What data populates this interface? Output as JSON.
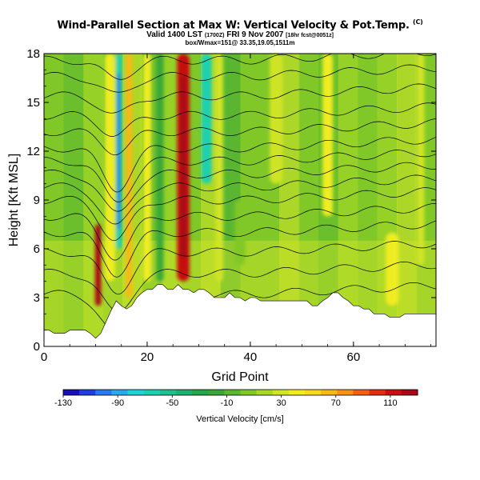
{
  "header": {
    "title": "Wind-Parallel Section at Max W: Vertical Velocity & Pot.Temp.",
    "title_tag": "(C)",
    "valid_main": "Valid 1400 LST",
    "valid_utc": "(1700Z)",
    "valid_date": "FRI 9 Nov 2007",
    "valid_fcst": "[18hr fcst@0051z]",
    "location": "box/Wmax=151@ 33.35,19.05,1511m"
  },
  "chart_data": {
    "type": "heatmap",
    "title": "Wind-Parallel Section at Max W: Vertical Velocity & Pot.Temp.",
    "xlabel": "Grid Point",
    "ylabel": "Height [Kft MSL]",
    "xlim": [
      0,
      76
    ],
    "ylim": [
      0,
      18
    ],
    "x_ticks": [
      0,
      20,
      40,
      60
    ],
    "y_ticks": [
      0,
      3,
      6,
      9,
      12,
      15,
      18
    ],
    "colorbar": {
      "label": "Vertical Velocity [cm/s]",
      "min": -130,
      "max": 130,
      "tick_values": [
        -130,
        -90,
        -50,
        -10,
        30,
        70,
        110
      ],
      "colors": [
        "#1a0fb4",
        "#1f3fe0",
        "#2a78f0",
        "#2aa8f0",
        "#22d0d8",
        "#1ed0b0",
        "#1ec090",
        "#1eb070",
        "#22a848",
        "#3aa838",
        "#5ab830",
        "#80c828",
        "#a8d828",
        "#d0e428",
        "#f0ec20",
        "#f8d820",
        "#f8b818",
        "#f89018",
        "#f06010",
        "#e03010",
        "#c81010",
        "#a80818"
      ]
    },
    "terrain": [
      [
        0,
        1.0
      ],
      [
        1,
        1.0
      ],
      [
        2,
        0.8
      ],
      [
        3,
        0.8
      ],
      [
        4,
        0.8
      ],
      [
        5,
        1.0
      ],
      [
        6,
        1.0
      ],
      [
        7,
        1.0
      ],
      [
        8,
        1.0
      ],
      [
        9,
        0.8
      ],
      [
        10,
        0.5
      ],
      [
        11,
        0.8
      ],
      [
        12,
        1.5
      ],
      [
        13,
        2.2
      ],
      [
        14,
        2.8
      ],
      [
        15,
        2.5
      ],
      [
        16,
        2.3
      ],
      [
        17,
        2.5
      ],
      [
        18,
        3.0
      ],
      [
        19,
        3.3
      ],
      [
        20,
        3.5
      ],
      [
        21,
        3.5
      ],
      [
        22,
        3.8
      ],
      [
        23,
        3.8
      ],
      [
        24,
        3.5
      ],
      [
        25,
        3.5
      ],
      [
        26,
        3.8
      ],
      [
        27,
        3.5
      ],
      [
        28,
        3.5
      ],
      [
        29,
        3.3
      ],
      [
        30,
        3.5
      ],
      [
        31,
        3.5
      ],
      [
        32,
        3.3
      ],
      [
        33,
        3.0
      ],
      [
        34,
        3.0
      ],
      [
        35,
        3.0
      ],
      [
        36,
        3.3
      ],
      [
        37,
        3.0
      ],
      [
        38,
        3.0
      ],
      [
        39,
        2.8
      ],
      [
        40,
        3.0
      ],
      [
        41,
        3.0
      ],
      [
        42,
        2.8
      ],
      [
        43,
        2.8
      ],
      [
        44,
        2.8
      ],
      [
        45,
        2.8
      ],
      [
        46,
        2.8
      ],
      [
        47,
        2.8
      ],
      [
        48,
        2.8
      ],
      [
        49,
        2.8
      ],
      [
        50,
        2.8
      ],
      [
        51,
        2.8
      ],
      [
        52,
        2.5
      ],
      [
        53,
        2.5
      ],
      [
        54,
        2.8
      ],
      [
        55,
        3.0
      ],
      [
        56,
        3.3
      ],
      [
        57,
        3.3
      ],
      [
        58,
        3.0
      ],
      [
        59,
        2.8
      ],
      [
        60,
        2.5
      ],
      [
        61,
        2.5
      ],
      [
        62,
        2.3
      ],
      [
        63,
        2.3
      ],
      [
        64,
        2.0
      ],
      [
        65,
        2.0
      ],
      [
        66,
        2.0
      ],
      [
        67,
        1.8
      ],
      [
        68,
        1.8
      ],
      [
        69,
        1.8
      ],
      [
        70,
        2.0
      ],
      [
        71,
        2.0
      ],
      [
        72,
        2.0
      ],
      [
        73,
        2.0
      ],
      [
        74,
        2.0
      ],
      [
        75,
        2.0
      ],
      [
        76,
        2.0
      ]
    ],
    "updrafts": [
      {
        "x": 10.5,
        "w": 1.2,
        "ymin": 2.5,
        "ymax": 7.5,
        "value": 130
      },
      {
        "x": 12.8,
        "w": 2.0,
        "ymin": 4.0,
        "ymax": 18.0,
        "value": 40
      },
      {
        "x": 14.5,
        "w": 1.2,
        "ymin": 6.0,
        "ymax": 18.0,
        "value": -70
      },
      {
        "x": 16.5,
        "w": 1.2,
        "ymin": 3.0,
        "ymax": 18.0,
        "value": 60
      },
      {
        "x": 20.0,
        "w": 1.6,
        "ymin": 4.0,
        "ymax": 18.0,
        "value": 40
      },
      {
        "x": 22.5,
        "w": 1.4,
        "ymin": 4.0,
        "ymax": 18.0,
        "value": -20
      },
      {
        "x": 27.0,
        "w": 2.4,
        "ymin": 4.0,
        "ymax": 18.0,
        "value": 110
      },
      {
        "x": 31.5,
        "w": 2.0,
        "ymin": 10.0,
        "ymax": 18.0,
        "value": -60
      },
      {
        "x": 34.0,
        "w": 1.5,
        "ymin": 4.0,
        "ymax": 18.0,
        "value": 30
      },
      {
        "x": 38.0,
        "w": 2.0,
        "ymin": 5.0,
        "ymax": 9.0,
        "value": 10
      },
      {
        "x": 45.0,
        "w": 2.5,
        "ymin": 10.0,
        "ymax": 18.0,
        "value": 30
      },
      {
        "x": 55.0,
        "w": 2.0,
        "ymin": 8.0,
        "ymax": 18.0,
        "value": 40
      },
      {
        "x": 67.5,
        "w": 2.5,
        "ymin": 2.5,
        "ymax": 7.0,
        "value": 45
      },
      {
        "x": 73.0,
        "w": 1.5,
        "ymin": 5.0,
        "ymax": 18.0,
        "value": 35
      }
    ],
    "background_value": 0
  }
}
